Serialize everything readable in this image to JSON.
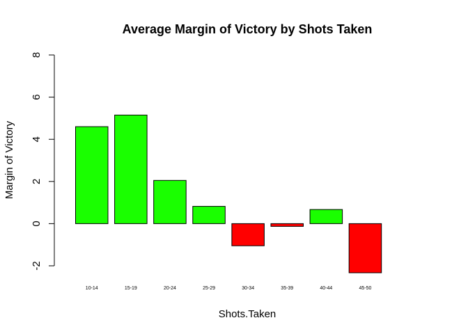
{
  "chart_data": {
    "type": "bar",
    "title": "Average Margin of Victory by Shots Taken",
    "xlabel": "Shots.Taken",
    "ylabel": "Margin of Victory",
    "categories": [
      "10-14",
      "15-19",
      "20-24",
      "25-29",
      "30-34",
      "35-39",
      "40-44",
      "45-50"
    ],
    "values": [
      4.6,
      5.15,
      2.05,
      0.82,
      -1.05,
      -0.13,
      0.67,
      -2.33
    ],
    "ylim": [
      -2,
      8
    ],
    "yticks": [
      "-2",
      "0",
      "2",
      "4",
      "6",
      "8"
    ],
    "grid": false,
    "legend": "none",
    "colors": {
      "positive": "#1aff00",
      "negative": "#ff0000",
      "bar_border": "#000000",
      "axis": "#000000"
    }
  }
}
